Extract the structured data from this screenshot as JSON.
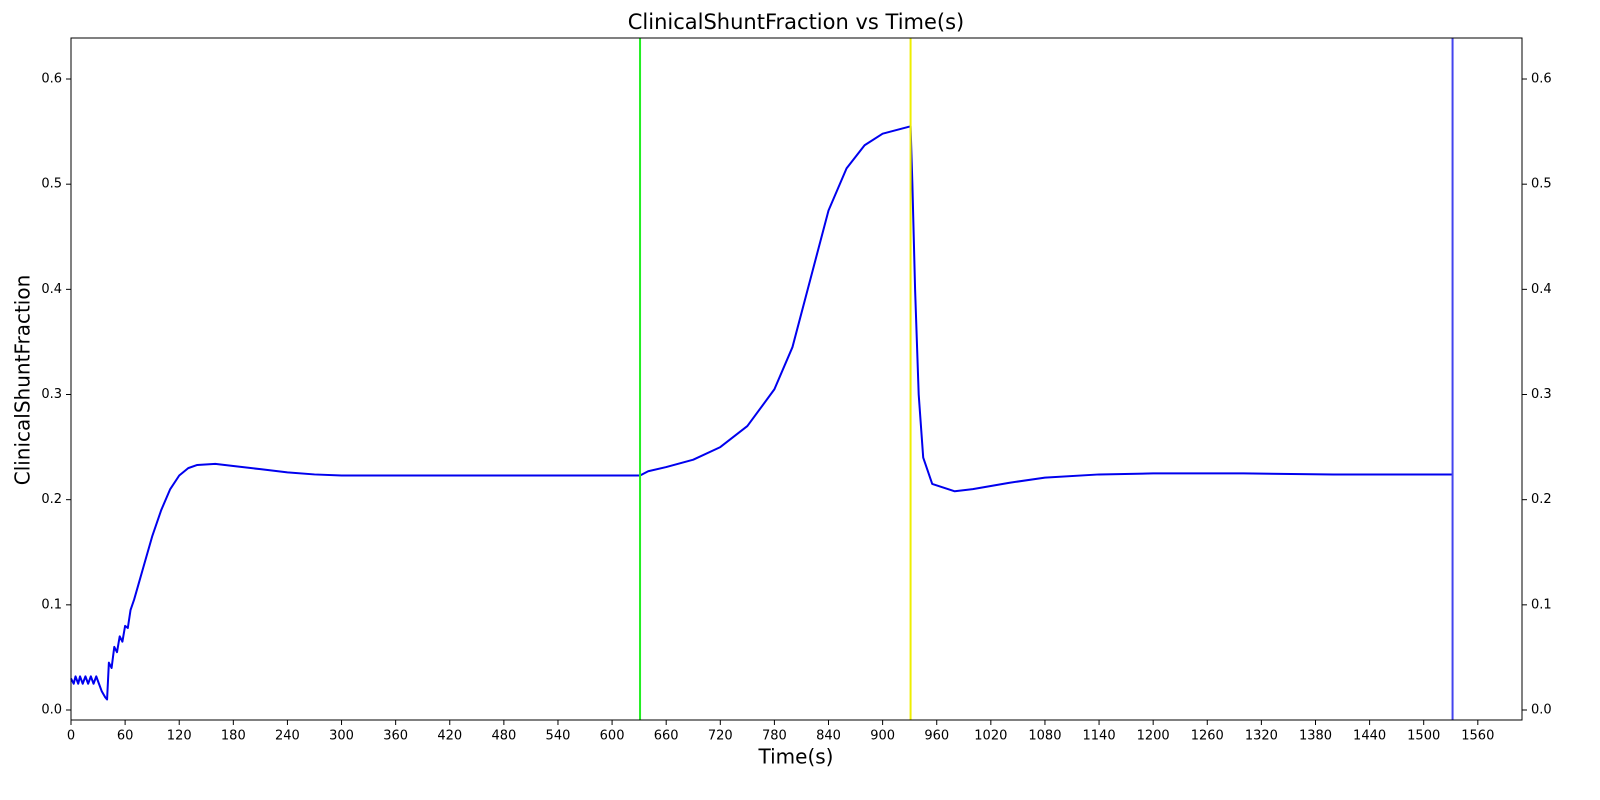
{
  "chart_data": {
    "type": "line",
    "title": "ClinicalShuntFraction vs Time(s)",
    "x_label": "Time(s)",
    "y_label": "ClinicalShuntFraction",
    "x": [
      0,
      3,
      5,
      8,
      10,
      13,
      16,
      19,
      22,
      25,
      28,
      31,
      34,
      38,
      40,
      42,
      45,
      48,
      51,
      54,
      57,
      60,
      63,
      66,
      70,
      75,
      80,
      90,
      100,
      110,
      120,
      130,
      140,
      160,
      180,
      210,
      240,
      270,
      300,
      400,
      500,
      631,
      640,
      660,
      690,
      720,
      750,
      780,
      800,
      820,
      840,
      860,
      880,
      900,
      931,
      933,
      936,
      940,
      945,
      955,
      980,
      1000,
      1040,
      1080,
      1140,
      1200,
      1300,
      1400,
      1532
    ],
    "series": [
      {
        "color": "#0000ee",
        "values": [
          0.03,
          0.025,
          0.032,
          0.025,
          0.032,
          0.025,
          0.032,
          0.025,
          0.032,
          0.025,
          0.032,
          0.025,
          0.018,
          0.012,
          0.01,
          0.045,
          0.04,
          0.06,
          0.055,
          0.07,
          0.065,
          0.08,
          0.078,
          0.095,
          0.105,
          0.12,
          0.135,
          0.165,
          0.19,
          0.21,
          0.223,
          0.23,
          0.233,
          0.234,
          0.232,
          0.229,
          0.226,
          0.224,
          0.223,
          0.223,
          0.223,
          0.223,
          0.227,
          0.231,
          0.238,
          0.25,
          0.27,
          0.305,
          0.345,
          0.41,
          0.475,
          0.515,
          0.537,
          0.548,
          0.555,
          0.5,
          0.4,
          0.3,
          0.24,
          0.215,
          0.208,
          0.21,
          0.216,
          0.221,
          0.224,
          0.225,
          0.225,
          0.224,
          0.224
        ]
      }
    ],
    "vlines": [
      {
        "x": 631,
        "color": "#22ee22"
      },
      {
        "x": 931,
        "color": "#eeee00"
      },
      {
        "x": 1532,
        "color": "#4444ee"
      }
    ],
    "xlim": [
      0,
      1609
    ],
    "ylim": [
      -0.0095,
      0.639
    ],
    "xticks": [
      0,
      60,
      120,
      180,
      240,
      300,
      360,
      420,
      480,
      540,
      600,
      660,
      720,
      780,
      840,
      900,
      960,
      1020,
      1080,
      1140,
      1200,
      1260,
      1320,
      1380,
      1440,
      1500,
      1560
    ],
    "yticks": [
      {
        "value": 0,
        "label": "0.0"
      },
      0.1,
      0.2,
      0.3,
      0.4,
      0.5,
      0.6
    ]
  }
}
